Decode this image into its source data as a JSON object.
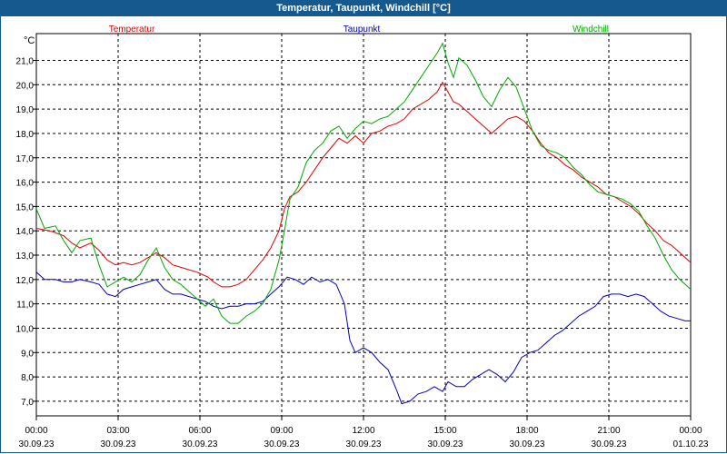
{
  "window": {
    "title": "Temperatur, Taupunkt, Windchill [°C]"
  },
  "chart_data": {
    "type": "line",
    "title": "Temperatur, Taupunkt, Windchill [°C]",
    "ylabel": "°C",
    "xlabel": "",
    "ylim": [
      6.4,
      22.1
    ],
    "grid": true,
    "legend": "top",
    "y_ticks": [
      "7,0",
      "8,0",
      "9,0",
      "10,0",
      "11,0",
      "12,0",
      "13,0",
      "14,0",
      "15,0",
      "16,0",
      "17,0",
      "18,0",
      "19,0",
      "20,0",
      "21,0"
    ],
    "x_ticks": [
      {
        "x": 0,
        "time": "00:00",
        "date": "30.09.23"
      },
      {
        "x": 3,
        "time": "03:00",
        "date": "30.09.23"
      },
      {
        "x": 6,
        "time": "06:00",
        "date": "30.09.23"
      },
      {
        "x": 9,
        "time": "09:00",
        "date": "30.09.23"
      },
      {
        "x": 12,
        "time": "12:00",
        "date": "30.09.23"
      },
      {
        "x": 15,
        "time": "15:00",
        "date": "30.09.23"
      },
      {
        "x": 18,
        "time": "18:00",
        "date": "30.09.23"
      },
      {
        "x": 21,
        "time": "21:00",
        "date": "30.09.23"
      },
      {
        "x": 24,
        "time": "00:00",
        "date": "01.10.23"
      }
    ],
    "series": [
      {
        "name": "Temperatur",
        "color": "#e00000",
        "points": [
          [
            0,
            14.1
          ],
          [
            0.5,
            14.0
          ],
          [
            1,
            13.8
          ],
          [
            1.3,
            13.5
          ],
          [
            1.6,
            13.3
          ],
          [
            2,
            13.5
          ],
          [
            2.3,
            13.2
          ],
          [
            2.6,
            12.8
          ],
          [
            2.9,
            12.6
          ],
          [
            3.2,
            12.7
          ],
          [
            3.5,
            12.6
          ],
          [
            3.8,
            12.7
          ],
          [
            4.1,
            12.9
          ],
          [
            4.4,
            13.1
          ],
          [
            4.7,
            12.9
          ],
          [
            5.0,
            12.6
          ],
          [
            5.3,
            12.5
          ],
          [
            5.6,
            12.4
          ],
          [
            5.9,
            12.3
          ],
          [
            6.1,
            12.2
          ],
          [
            6.3,
            12.1
          ],
          [
            6.5,
            11.9
          ],
          [
            6.8,
            11.7
          ],
          [
            7.1,
            11.7
          ],
          [
            7.4,
            11.8
          ],
          [
            7.7,
            12.0
          ],
          [
            8.0,
            12.4
          ],
          [
            8.3,
            12.8
          ],
          [
            8.6,
            13.3
          ],
          [
            8.9,
            14.0
          ],
          [
            9.1,
            14.9
          ],
          [
            9.3,
            15.4
          ],
          [
            9.6,
            15.6
          ],
          [
            9.9,
            16.0
          ],
          [
            10.2,
            16.5
          ],
          [
            10.5,
            17.0
          ],
          [
            10.8,
            17.4
          ],
          [
            11.1,
            17.8
          ],
          [
            11.4,
            17.6
          ],
          [
            11.7,
            17.9
          ],
          [
            12.0,
            17.6
          ],
          [
            12.3,
            18.0
          ],
          [
            12.6,
            18.1
          ],
          [
            12.9,
            18.3
          ],
          [
            13.2,
            18.4
          ],
          [
            13.5,
            18.6
          ],
          [
            13.8,
            19.0
          ],
          [
            14.1,
            19.2
          ],
          [
            14.4,
            19.4
          ],
          [
            14.7,
            19.7
          ],
          [
            14.9,
            20.1
          ],
          [
            15.1,
            19.7
          ],
          [
            15.3,
            19.3
          ],
          [
            15.5,
            19.2
          ],
          [
            15.8,
            18.9
          ],
          [
            16.1,
            18.6
          ],
          [
            16.4,
            18.3
          ],
          [
            16.7,
            18.0
          ],
          [
            17.0,
            18.3
          ],
          [
            17.3,
            18.6
          ],
          [
            17.6,
            18.7
          ],
          [
            17.9,
            18.5
          ],
          [
            18.2,
            18.1
          ],
          [
            18.5,
            17.6
          ],
          [
            18.8,
            17.2
          ],
          [
            19.1,
            17.0
          ],
          [
            19.4,
            16.7
          ],
          [
            19.7,
            16.5
          ],
          [
            20.0,
            16.2
          ],
          [
            20.3,
            16.0
          ],
          [
            20.6,
            15.8
          ],
          [
            20.9,
            15.5
          ],
          [
            21.2,
            15.4
          ],
          [
            21.5,
            15.2
          ],
          [
            21.8,
            15.0
          ],
          [
            22.1,
            14.7
          ],
          [
            22.4,
            14.3
          ],
          [
            22.7,
            14.0
          ],
          [
            23.0,
            13.6
          ],
          [
            23.3,
            13.4
          ],
          [
            23.6,
            13.1
          ],
          [
            23.9,
            12.8
          ],
          [
            24.0,
            12.7
          ]
        ]
      },
      {
        "name": "Taupunkt",
        "color": "#0000b8",
        "points": [
          [
            0,
            12.3
          ],
          [
            0.3,
            12.0
          ],
          [
            0.7,
            12.0
          ],
          [
            1.0,
            11.9
          ],
          [
            1.3,
            11.9
          ],
          [
            1.6,
            12.0
          ],
          [
            2.0,
            11.9
          ],
          [
            2.3,
            11.8
          ],
          [
            2.6,
            11.4
          ],
          [
            2.9,
            11.3
          ],
          [
            3.2,
            11.6
          ],
          [
            3.5,
            11.7
          ],
          [
            3.8,
            11.8
          ],
          [
            4.1,
            11.9
          ],
          [
            4.4,
            12.0
          ],
          [
            4.7,
            11.6
          ],
          [
            5.0,
            11.4
          ],
          [
            5.3,
            11.4
          ],
          [
            5.6,
            11.3
          ],
          [
            5.9,
            11.2
          ],
          [
            6.2,
            11.1
          ],
          [
            6.5,
            10.9
          ],
          [
            6.8,
            10.8
          ],
          [
            7.1,
            10.9
          ],
          [
            7.4,
            10.9
          ],
          [
            7.7,
            11.0
          ],
          [
            8.0,
            11.0
          ],
          [
            8.3,
            11.1
          ],
          [
            8.6,
            11.4
          ],
          [
            8.9,
            11.7
          ],
          [
            9.2,
            12.1
          ],
          [
            9.5,
            12.0
          ],
          [
            9.8,
            11.8
          ],
          [
            10.1,
            12.1
          ],
          [
            10.4,
            11.9
          ],
          [
            10.7,
            12.0
          ],
          [
            11.0,
            11.8
          ],
          [
            11.3,
            11.0
          ],
          [
            11.5,
            9.5
          ],
          [
            11.7,
            9.0
          ],
          [
            12.0,
            9.2
          ],
          [
            12.3,
            9.0
          ],
          [
            12.6,
            8.6
          ],
          [
            12.9,
            8.3
          ],
          [
            13.2,
            7.5
          ],
          [
            13.4,
            6.9
          ],
          [
            13.7,
            7.0
          ],
          [
            14.0,
            7.3
          ],
          [
            14.3,
            7.4
          ],
          [
            14.6,
            7.6
          ],
          [
            14.9,
            7.4
          ],
          [
            15.1,
            7.8
          ],
          [
            15.4,
            7.6
          ],
          [
            15.7,
            7.6
          ],
          [
            16.0,
            7.9
          ],
          [
            16.3,
            8.1
          ],
          [
            16.6,
            8.3
          ],
          [
            16.9,
            8.1
          ],
          [
            17.2,
            7.8
          ],
          [
            17.5,
            8.2
          ],
          [
            17.8,
            8.8
          ],
          [
            18.1,
            9.0
          ],
          [
            18.4,
            9.1
          ],
          [
            18.7,
            9.4
          ],
          [
            19.0,
            9.7
          ],
          [
            19.3,
            9.9
          ],
          [
            19.6,
            10.2
          ],
          [
            19.9,
            10.5
          ],
          [
            20.2,
            10.7
          ],
          [
            20.5,
            10.9
          ],
          [
            20.8,
            11.3
          ],
          [
            21.1,
            11.4
          ],
          [
            21.4,
            11.4
          ],
          [
            21.7,
            11.3
          ],
          [
            22.0,
            11.4
          ],
          [
            22.3,
            11.3
          ],
          [
            22.6,
            11.0
          ],
          [
            22.9,
            10.7
          ],
          [
            23.2,
            10.5
          ],
          [
            23.5,
            10.4
          ],
          [
            23.8,
            10.3
          ],
          [
            24.0,
            10.3
          ]
        ]
      },
      {
        "name": "Windchill",
        "color": "#00a800",
        "points": [
          [
            0,
            14.9
          ],
          [
            0.3,
            14.1
          ],
          [
            0.7,
            14.2
          ],
          [
            1.0,
            13.6
          ],
          [
            1.3,
            13.1
          ],
          [
            1.6,
            13.6
          ],
          [
            2.0,
            13.7
          ],
          [
            2.3,
            12.6
          ],
          [
            2.6,
            11.7
          ],
          [
            2.9,
            11.9
          ],
          [
            3.2,
            12.1
          ],
          [
            3.5,
            11.9
          ],
          [
            3.8,
            12.2
          ],
          [
            4.1,
            12.8
          ],
          [
            4.4,
            13.3
          ],
          [
            4.7,
            12.5
          ],
          [
            5.0,
            12.0
          ],
          [
            5.3,
            11.8
          ],
          [
            5.6,
            11.5
          ],
          [
            5.9,
            11.2
          ],
          [
            6.2,
            10.9
          ],
          [
            6.5,
            11.2
          ],
          [
            6.8,
            10.5
          ],
          [
            7.1,
            10.2
          ],
          [
            7.4,
            10.2
          ],
          [
            7.7,
            10.5
          ],
          [
            8.0,
            10.7
          ],
          [
            8.3,
            11.0
          ],
          [
            8.6,
            11.6
          ],
          [
            8.9,
            12.8
          ],
          [
            9.1,
            14.0
          ],
          [
            9.3,
            15.3
          ],
          [
            9.6,
            15.8
          ],
          [
            9.9,
            16.8
          ],
          [
            10.2,
            17.3
          ],
          [
            10.5,
            17.6
          ],
          [
            10.8,
            18.1
          ],
          [
            11.1,
            18.3
          ],
          [
            11.4,
            17.8
          ],
          [
            11.7,
            18.2
          ],
          [
            12.0,
            18.5
          ],
          [
            12.3,
            18.4
          ],
          [
            12.6,
            18.6
          ],
          [
            12.9,
            18.7
          ],
          [
            13.2,
            19.0
          ],
          [
            13.5,
            19.3
          ],
          [
            13.8,
            19.8
          ],
          [
            14.1,
            20.3
          ],
          [
            14.4,
            20.8
          ],
          [
            14.7,
            21.3
          ],
          [
            14.9,
            21.7
          ],
          [
            15.1,
            20.9
          ],
          [
            15.3,
            20.3
          ],
          [
            15.5,
            21.1
          ],
          [
            15.8,
            20.8
          ],
          [
            16.1,
            20.2
          ],
          [
            16.4,
            19.5
          ],
          [
            16.7,
            19.1
          ],
          [
            17.0,
            19.8
          ],
          [
            17.3,
            20.3
          ],
          [
            17.6,
            19.9
          ],
          [
            17.9,
            19.0
          ],
          [
            18.2,
            18.1
          ],
          [
            18.5,
            17.5
          ],
          [
            18.8,
            17.3
          ],
          [
            19.1,
            17.2
          ],
          [
            19.4,
            17.0
          ],
          [
            19.7,
            16.6
          ],
          [
            20.0,
            16.3
          ],
          [
            20.3,
            15.9
          ],
          [
            20.6,
            15.6
          ],
          [
            20.9,
            15.5
          ],
          [
            21.2,
            15.4
          ],
          [
            21.5,
            15.3
          ],
          [
            21.8,
            15.1
          ],
          [
            22.1,
            14.8
          ],
          [
            22.4,
            14.2
          ],
          [
            22.7,
            13.7
          ],
          [
            23.0,
            13.0
          ],
          [
            23.3,
            12.4
          ],
          [
            23.6,
            12.0
          ],
          [
            23.9,
            11.7
          ],
          [
            24.0,
            11.6
          ]
        ]
      }
    ]
  }
}
